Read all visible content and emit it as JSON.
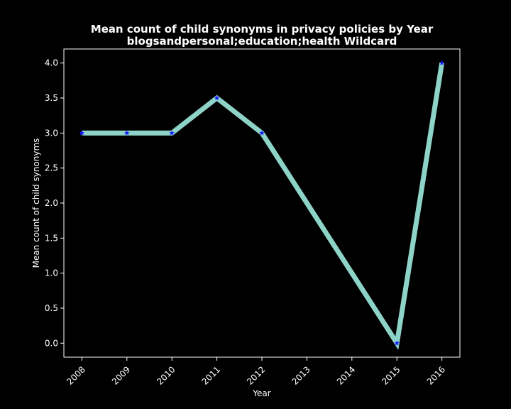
{
  "chart_data": {
    "type": "line",
    "title": "Mean count of child synonyms in privacy policies by Year",
    "subtitle": "blogsandpersonal;education;health Wildcard",
    "xlabel": "Year",
    "ylabel": "Mean count of child synonyms",
    "x_ticks": [
      "2008",
      "2009",
      "2010",
      "2011",
      "2012",
      "2013",
      "2014",
      "2015",
      "2016"
    ],
    "y_ticks": [
      "0.0",
      "0.5",
      "1.0",
      "1.5",
      "2.0",
      "2.5",
      "3.0",
      "3.5",
      "4.0"
    ],
    "xlim": [
      2007.6,
      2016.4
    ],
    "ylim": [
      -0.2,
      4.2
    ],
    "grid": false,
    "series": [
      {
        "x": [
          2008,
          2009,
          2010,
          2011,
          2012,
          2015,
          2016
        ],
        "values": [
          3.0,
          3.0,
          3.0,
          3.5,
          3.0,
          0.0,
          4.0
        ],
        "line_color": "#8dd3c7",
        "marker": "star",
        "marker_color": "#1a1aff"
      }
    ],
    "background": "#000000",
    "foreground": "#ffffff"
  }
}
